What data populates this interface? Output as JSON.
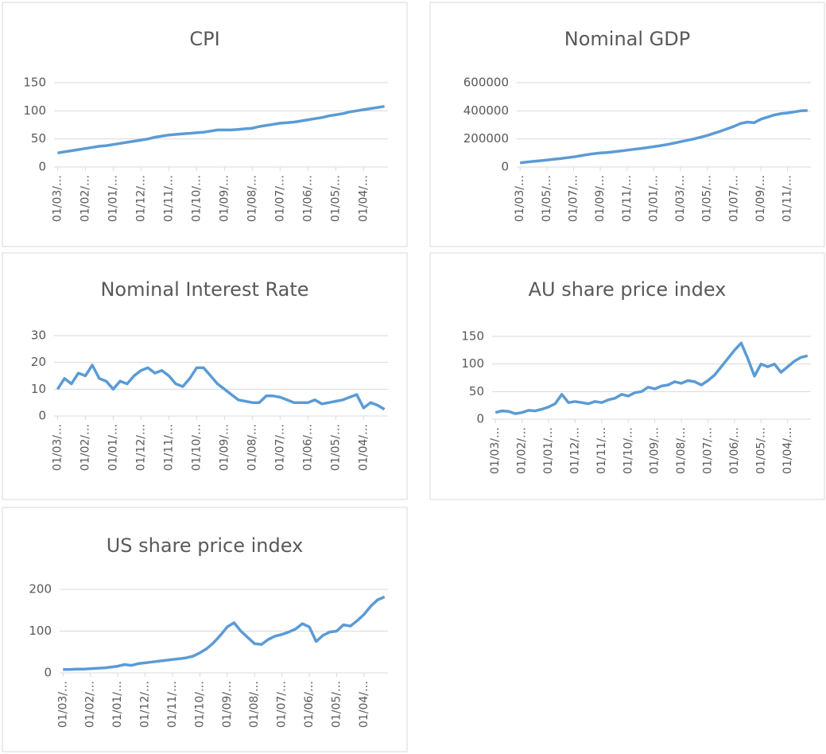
{
  "chart_data": [
    {
      "type": "line",
      "title": "CPI",
      "color": "#5b9bd5",
      "grid": true,
      "categories": [
        "01/03/…",
        null,
        null,
        null,
        "01/02/…",
        null,
        null,
        null,
        "01/01/…",
        null,
        null,
        null,
        "01/12/…",
        null,
        null,
        null,
        "01/11/…",
        null,
        null,
        null,
        "01/10/…",
        null,
        null,
        null,
        "01/09/…",
        null,
        null,
        null,
        "01/08/…",
        null,
        null,
        null,
        "01/07/…",
        null,
        null,
        null,
        "01/06/…",
        null,
        null,
        null,
        "01/05/…",
        null,
        null,
        null,
        "01/04/…",
        null,
        null,
        null
      ],
      "values": [
        25,
        27,
        29,
        31,
        33,
        35,
        37,
        38,
        40,
        42,
        44,
        46,
        48,
        50,
        53,
        55,
        57,
        58,
        59,
        60,
        61,
        62,
        64,
        66,
        66,
        66,
        67,
        68,
        69,
        72,
        74,
        76,
        78,
        79,
        80,
        82,
        84,
        86,
        88,
        91,
        93,
        95,
        98,
        100,
        102,
        104,
        106,
        108
      ],
      "ylim": [
        0,
        150
      ],
      "yticks": [
        0,
        50,
        100,
        150
      ]
    },
    {
      "type": "line",
      "title": "Nominal GDP",
      "color": "#5b9bd5",
      "grid": true,
      "categories": [
        "01/03/…",
        null,
        null,
        null,
        "01/05/…",
        null,
        null,
        null,
        "01/07/…",
        null,
        null,
        null,
        "01/09/…",
        null,
        null,
        null,
        "01/11/…",
        null,
        null,
        null,
        "01/01/…",
        null,
        null,
        null,
        "01/03/…",
        null,
        null,
        null,
        "01/05/…",
        null,
        null,
        null,
        "01/07/…",
        null,
        null,
        null,
        "01/09/…",
        null,
        null,
        null,
        "01/11/…",
        null,
        null,
        null
      ],
      "values": [
        30000,
        35000,
        40000,
        45000,
        50000,
        55000,
        60000,
        66000,
        72000,
        80000,
        88000,
        95000,
        100000,
        103000,
        108000,
        114000,
        120000,
        126000,
        132000,
        138000,
        145000,
        152000,
        160000,
        170000,
        180000,
        190000,
        200000,
        212000,
        225000,
        240000,
        255000,
        272000,
        290000,
        310000,
        320000,
        315000,
        340000,
        355000,
        370000,
        380000,
        385000,
        392000,
        400000,
        402000
      ],
      "ylim": [
        0,
        600000
      ],
      "yticks": [
        0,
        200000,
        400000,
        600000
      ]
    },
    {
      "type": "line",
      "title": "Nominal Interest Rate",
      "color": "#5b9bd5",
      "grid": true,
      "categories": [
        "01/03/…",
        null,
        null,
        null,
        "01/02/…",
        null,
        null,
        null,
        "01/01/…",
        null,
        null,
        null,
        "01/12/…",
        null,
        null,
        null,
        "01/11/…",
        null,
        null,
        null,
        "01/10/…",
        null,
        null,
        null,
        "01/09/…",
        null,
        null,
        null,
        "01/08/…",
        null,
        null,
        null,
        "01/07/…",
        null,
        null,
        null,
        "01/06/…",
        null,
        null,
        null,
        "01/05/…",
        null,
        null,
        null,
        "01/04/…",
        null,
        null,
        null
      ],
      "values": [
        10,
        14,
        12,
        16,
        15,
        19,
        14,
        13,
        10,
        13,
        12,
        15,
        17,
        18,
        16,
        17,
        15,
        12,
        11,
        14,
        18,
        18,
        15,
        12,
        10,
        8,
        6,
        5.5,
        5,
        5,
        7.5,
        7.5,
        7,
        6,
        5,
        5,
        5,
        6,
        4.5,
        5,
        5.5,
        6,
        7,
        8,
        3,
        5,
        4,
        2.5
      ],
      "ylim": [
        0,
        30
      ],
      "yticks": [
        0,
        10,
        20,
        30
      ]
    },
    {
      "type": "line",
      "title": "AU share price index",
      "color": "#5b9bd5",
      "grid": true,
      "categories": [
        "01/03/…",
        null,
        null,
        null,
        "01/02/…",
        null,
        null,
        null,
        "01/01/…",
        null,
        null,
        null,
        "01/12/…",
        null,
        null,
        null,
        "01/11/…",
        null,
        null,
        null,
        "01/10/…",
        null,
        null,
        null,
        "01/09/…",
        null,
        null,
        null,
        "01/08/…",
        null,
        null,
        null,
        "01/07/…",
        null,
        null,
        null,
        "01/06/…",
        null,
        null,
        null,
        "01/05/…",
        null,
        null,
        null,
        "01/04/…",
        null,
        null,
        null
      ],
      "values": [
        12,
        15,
        14,
        10,
        12,
        16,
        15,
        18,
        22,
        28,
        45,
        30,
        32,
        30,
        28,
        32,
        30,
        35,
        38,
        45,
        42,
        48,
        50,
        58,
        55,
        60,
        62,
        68,
        65,
        70,
        68,
        62,
        70,
        80,
        95,
        110,
        125,
        138,
        110,
        78,
        100,
        95,
        100,
        85,
        95,
        105,
        112,
        115
      ],
      "ylim": [
        0,
        150
      ],
      "yticks": [
        0,
        50,
        100,
        150
      ]
    },
    {
      "type": "line",
      "title": "US share price index",
      "color": "#5b9bd5",
      "grid": true,
      "categories": [
        "01/03/…",
        null,
        null,
        null,
        "01/02/…",
        null,
        null,
        null,
        "01/01/…",
        null,
        null,
        null,
        "01/12/…",
        null,
        null,
        null,
        "01/11/…",
        null,
        null,
        null,
        "01/10/…",
        null,
        null,
        null,
        "01/09/…",
        null,
        null,
        null,
        "01/08/…",
        null,
        null,
        null,
        "01/07/…",
        null,
        null,
        null,
        "01/06/…",
        null,
        null,
        null,
        "01/05/…",
        null,
        null,
        null,
        "01/04/…",
        null,
        null,
        null
      ],
      "values": [
        8,
        8,
        9,
        9,
        10,
        11,
        12,
        14,
        16,
        20,
        18,
        22,
        24,
        26,
        28,
        30,
        32,
        34,
        36,
        40,
        48,
        58,
        72,
        90,
        110,
        120,
        100,
        85,
        70,
        68,
        80,
        88,
        92,
        98,
        105,
        118,
        110,
        75,
        90,
        98,
        100,
        115,
        112,
        125,
        140,
        160,
        175,
        182
      ],
      "ylim": [
        0,
        200
      ],
      "yticks": [
        0,
        100,
        200
      ]
    }
  ]
}
